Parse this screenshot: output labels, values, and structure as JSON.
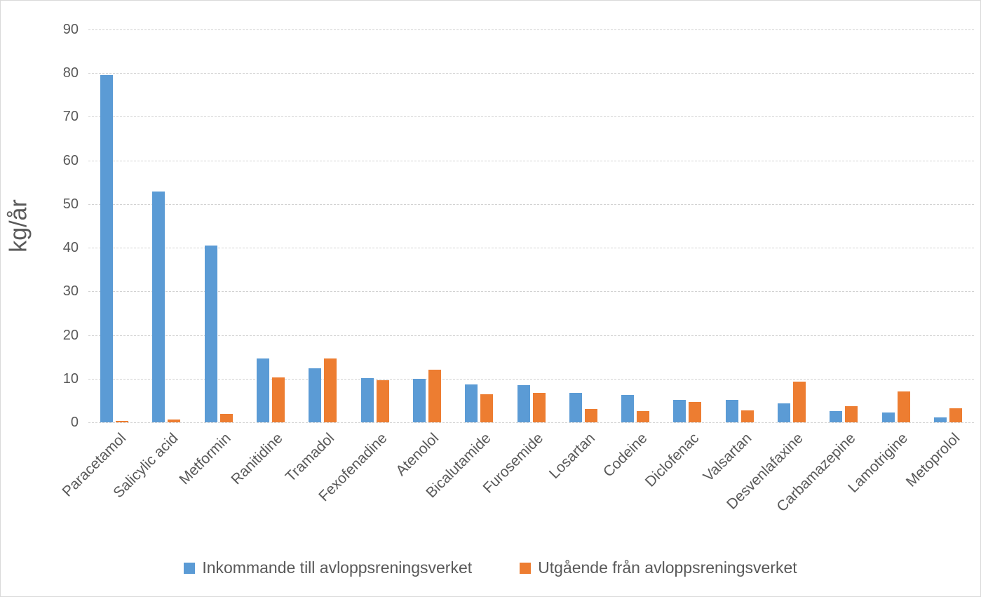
{
  "chart_data": {
    "type": "bar",
    "title": "",
    "ylabel": "kg/år",
    "xlabel": "",
    "ylim": [
      0,
      90
    ],
    "ytick_step": 10,
    "ytick_labels": [
      "0",
      "10",
      "20",
      "30",
      "40",
      "50",
      "60",
      "70",
      "80",
      "90"
    ],
    "grid": true,
    "legend_position": "bottom",
    "categories": [
      "Paracetamol",
      "Salicylic acid",
      "Metformin",
      "Ranitidine",
      "Tramadol",
      "Fexofenadine",
      "Atenolol",
      "Bicalutamide",
      "Furosemide",
      "Losartan",
      "Codeine",
      "Diclofenac",
      "Valsartan",
      "Desvenlafaxine",
      "Carbamazepine",
      "Lamotrigine",
      "Metoprolol"
    ],
    "series": [
      {
        "name": "Inkommande till avloppsreningsverket",
        "color": "#5B9BD5",
        "values": [
          79.5,
          52.8,
          40.5,
          14.7,
          12.3,
          10.1,
          10.0,
          8.6,
          8.5,
          6.7,
          6.2,
          5.2,
          5.1,
          4.3,
          2.6,
          2.2,
          1.2
        ]
      },
      {
        "name": "Utgående från avloppsreningsverket",
        "color": "#ED7D31",
        "values": [
          0.3,
          0.6,
          2.0,
          10.3,
          14.7,
          9.7,
          12.1,
          6.5,
          6.7,
          3.1,
          2.6,
          4.7,
          2.7,
          9.3,
          3.7,
          7.0,
          3.2
        ]
      }
    ]
  },
  "colors": {
    "text": "#595959",
    "gridline": "#D2D2D2",
    "frame_border": "#D9D9D9",
    "background": "#FFFFFF"
  }
}
